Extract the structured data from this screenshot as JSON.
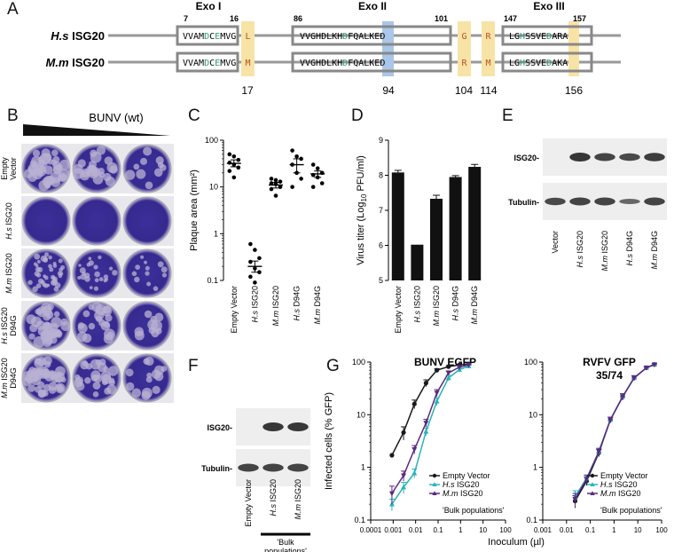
{
  "panelA": {
    "label": "A",
    "domains": [
      {
        "name": "Exo I",
        "start": "7",
        "end": "16"
      },
      {
        "name": "Exo II",
        "start": "86",
        "end": "101"
      },
      {
        "name": "Exo III",
        "start": "147",
        "end": "157"
      }
    ],
    "species": [
      {
        "italic": "H.s",
        "rest": " ISG20",
        "seq1": [
          "VVAM",
          "D",
          "C",
          "E",
          "MVG"
        ],
        "res17": "L",
        "seq2": [
          "VVGHDLKH",
          "D",
          "FQALKED"
        ],
        "res104": "G",
        "res114": "R",
        "seq3": [
          "LG",
          "H",
          "SSVE",
          "D",
          "ARA"
        ]
      },
      {
        "italic": "M.m",
        "rest": " ISG20",
        "seq1": [
          "VVAM",
          "D",
          "C",
          "E",
          "MVG"
        ],
        "res17": "M",
        "seq2": [
          "VVGHDLKH",
          "D",
          "FQALKED"
        ],
        "res104": "R",
        "res114": "M",
        "seq3": [
          "LG",
          "H",
          "SSVE",
          "D",
          "AKA"
        ]
      }
    ],
    "positions": [
      "17",
      "94",
      "104",
      "114",
      "156"
    ],
    "colors": {
      "catalytic": "#2e9e6e",
      "variant": "#b5521f",
      "highlight_yellow": "#f8e3a6",
      "highlight_blue": "#aac6e8"
    }
  },
  "panelB": {
    "label": "B",
    "header": "BUNV (wt)",
    "rows": [
      {
        "line1": "Empty",
        "line2": "Vector",
        "italic1": false
      },
      {
        "line1": "H.s ISG20",
        "line2": "",
        "italic1": true
      },
      {
        "line1": "M.m ISG20",
        "line2": "",
        "italic1": true
      },
      {
        "line1": "H.s ISG20",
        "line2": "D94G",
        "italic1": true
      },
      {
        "line1": "M.m ISG20",
        "line2": "D94G",
        "italic1": true
      }
    ]
  },
  "panelC": {
    "label": "C",
    "chart_data": {
      "type": "scatter",
      "ylabel": "Plaque area (mm²)",
      "yscale": "log",
      "ylim": [
        0.1,
        100
      ],
      "yticks": [
        "0.1",
        "1",
        "10",
        "100"
      ],
      "categories": [
        "Empty Vector",
        "H.s ISG20",
        "M.m ISG20",
        "H.s D94G",
        "M.m D94G"
      ],
      "means": [
        32,
        0.2,
        11,
        30,
        19
      ],
      "sem_low": [
        27,
        0.15,
        9.5,
        20,
        16
      ],
      "sem_high": [
        38,
        0.26,
        12.5,
        40,
        22
      ],
      "points": [
        [
          50,
          45,
          38,
          33,
          30,
          26,
          22,
          16
        ],
        [
          0.6,
          0.45,
          0.3,
          0.25,
          0.18,
          0.15,
          0.12,
          0.09
        ],
        [
          15,
          14,
          13,
          12,
          11.5,
          10,
          9,
          6.5
        ],
        [
          60,
          45,
          40,
          30,
          20,
          15,
          10
        ],
        [
          30,
          25,
          20,
          18,
          16,
          12,
          10
        ]
      ]
    }
  },
  "panelD": {
    "label": "D",
    "chart_data": {
      "type": "bar",
      "ylabel_pre": "Virus titer (Log",
      "ylabel_sub": "10",
      "ylabel_post": " PFU/ml)",
      "ylim": [
        5,
        9
      ],
      "yticks": [
        "5",
        "6",
        "7",
        "8",
        "9"
      ],
      "categories": [
        "Empty Vector",
        "H.s ISG20",
        "M.m ISG20",
        "H.s D94G",
        "M.m D94G"
      ],
      "values": [
        8.08,
        6.02,
        7.33,
        7.95,
        8.24
      ],
      "errors": [
        0.06,
        0.0,
        0.1,
        0.04,
        0.07
      ]
    }
  },
  "panelE": {
    "label": "E",
    "bands": [
      "ISG20-",
      "Tubulin-"
    ],
    "lanes": [
      "Vector",
      "H.s ISG20",
      "M.m ISG20",
      "H.s D94G",
      "M.m D94G"
    ]
  },
  "panelF": {
    "label": "F",
    "bands": [
      "ISG20-",
      "Tubulin-"
    ],
    "lanes": [
      "Empty Vector",
      "H.s ISG20",
      "M.m ISG20"
    ],
    "bracket_line1": "'Bulk",
    "bracket_line2": "populations'"
  },
  "panelG": {
    "label": "G",
    "xlabel": "Inoculum (µl)",
    "ylabel": "Infected cells (% GFP)",
    "xticks": [
      "0.0001",
      "0.001",
      "0.01",
      "0.1",
      "1",
      "10",
      "100"
    ],
    "yticks": [
      "0.1",
      "1",
      "10",
      "100"
    ],
    "colors": {
      "empty": "#1a1a1a",
      "hs": "#2ab3b8",
      "mm": "#5a2a82"
    },
    "legend": [
      "Empty Vector",
      "H.s ISG20",
      "M.m ISG20"
    ],
    "note": "'Bulk populations'",
    "chart_data": [
      {
        "type": "line",
        "title": "BUNV EGFP",
        "xscale": "log",
        "yscale": "log",
        "xlim": [
          0.0001,
          100
        ],
        "ylim": [
          0.1,
          100
        ],
        "series": [
          {
            "name": "Empty Vector",
            "x": [
              0.00088,
              0.0029,
              0.0088,
              0.029,
              0.088,
              0.29,
              0.88,
              2.3
            ],
            "y": [
              1.7,
              4.6,
              16,
              40,
              70,
              82,
              88,
              92
            ],
            "err": [
              0,
              1.3,
              3,
              6,
              5,
              4,
              3,
              3
            ]
          },
          {
            "name": "H.s ISG20",
            "x": [
              0.00088,
              0.0029,
              0.0088,
              0.029,
              0.088,
              0.29,
              0.88,
              2.3
            ],
            "y": [
              0.2,
              0.42,
              0.78,
              4.8,
              18,
              50,
              72,
              84
            ],
            "err": [
              0.05,
              0.1,
              0.15,
              0.8,
              3,
              6,
              5,
              4
            ]
          },
          {
            "name": "M.m ISG20",
            "x": [
              0.00088,
              0.0029,
              0.0088,
              0.029,
              0.088,
              0.29,
              0.88,
              2.3
            ],
            "y": [
              0.32,
              0.7,
              2.2,
              7,
              26,
              62,
              80,
              88
            ],
            "err": [
              0.12,
              0.15,
              0.4,
              1.2,
              4,
              6,
              5,
              4
            ]
          }
        ]
      },
      {
        "type": "line",
        "title": "RVFV GFP",
        "subtitle": "35/74",
        "xscale": "log",
        "yscale": "log",
        "xlim": [
          0.001,
          100
        ],
        "ylim": [
          0.1,
          100
        ],
        "series": [
          {
            "name": "Empty Vector",
            "x": [
              0.023,
              0.07,
              0.23,
              0.7,
              2.3,
              7,
              23,
              50
            ],
            "y": [
              0.23,
              0.55,
              1.9,
              8,
              22,
              50,
              78,
              90
            ],
            "err": [
              0.06,
              0.1,
              0.3,
              1,
              3,
              5,
              5,
              4
            ]
          },
          {
            "name": "H.s ISG20",
            "x": [
              0.023,
              0.07,
              0.23,
              0.7,
              2.3,
              7,
              23,
              50
            ],
            "y": [
              0.28,
              0.62,
              2.0,
              8,
              22,
              50,
              78,
              90
            ],
            "err": [
              0.08,
              0.1,
              0.3,
              1,
              3,
              5,
              5,
              4
            ]
          },
          {
            "name": "M.m ISG20",
            "x": [
              0.023,
              0.07,
              0.23,
              0.7,
              2.3,
              7,
              23,
              50
            ],
            "y": [
              0.25,
              0.6,
              2.0,
              8,
              22,
              50,
              78,
              90
            ],
            "err": [
              0.07,
              0.1,
              0.3,
              1,
              3,
              5,
              5,
              4
            ]
          }
        ]
      }
    ]
  }
}
